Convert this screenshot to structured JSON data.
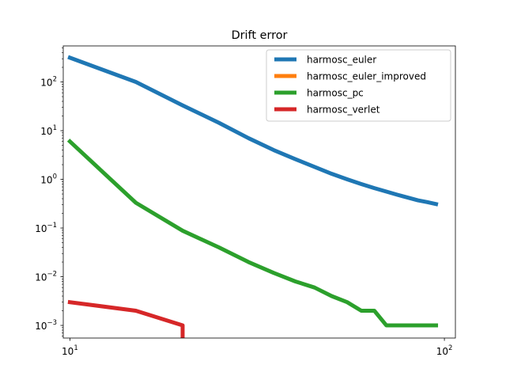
{
  "chart_data": {
    "type": "line",
    "title": "Drift error",
    "xlabel": "",
    "ylabel": "",
    "xscale": "log",
    "yscale": "log",
    "xlim": [
      9.6,
      107
    ],
    "ylim": [
      0.00055,
      550
    ],
    "grid": false,
    "legend_position": "top-right",
    "x_ticks": [
      {
        "value": 10,
        "base": "10",
        "exp": "1"
      },
      {
        "value": 100,
        "base": "10",
        "exp": "2"
      }
    ],
    "y_ticks": [
      {
        "value": 0.001,
        "base": "10",
        "exp": "−3"
      },
      {
        "value": 0.01,
        "base": "10",
        "exp": "−2"
      },
      {
        "value": 0.1,
        "base": "10",
        "exp": "−1"
      },
      {
        "value": 1,
        "base": "10",
        "exp": "0"
      },
      {
        "value": 10,
        "base": "10",
        "exp": "1"
      },
      {
        "value": 100,
        "base": "10",
        "exp": "2"
      }
    ],
    "series": [
      {
        "name": "harmosc_euler",
        "color": "#1f77b4",
        "x": [
          10,
          15,
          20,
          25,
          30,
          35,
          40,
          45,
          50,
          55,
          60,
          65,
          70,
          75,
          80,
          85,
          90,
          95
        ],
        "y": [
          315,
          100,
          33,
          14.5,
          7,
          4,
          2.6,
          1.8,
          1.3,
          1.0,
          0.8,
          0.66,
          0.56,
          0.48,
          0.42,
          0.37,
          0.34,
          0.31
        ]
      },
      {
        "name": "harmosc_euler_improved",
        "color": "#ff7f0e",
        "x": [],
        "y": []
      },
      {
        "name": "harmosc_pc",
        "color": "#2ca02c",
        "x": [
          10,
          15,
          20,
          25,
          30,
          35,
          40,
          45,
          50,
          55,
          60,
          65,
          70,
          75,
          80,
          85,
          90,
          95
        ],
        "y": [
          6.0,
          0.33,
          0.088,
          0.04,
          0.02,
          0.012,
          0.008,
          0.006,
          0.004,
          0.003,
          0.002,
          0.002,
          0.001,
          0.001,
          0.001,
          0.001,
          0.001,
          0.001
        ]
      },
      {
        "name": "harmosc_verlet",
        "color": "#d62728",
        "x": [
          10,
          15,
          20,
          20
        ],
        "y": [
          0.003,
          0.002,
          0.001,
          0.0004
        ]
      }
    ]
  }
}
